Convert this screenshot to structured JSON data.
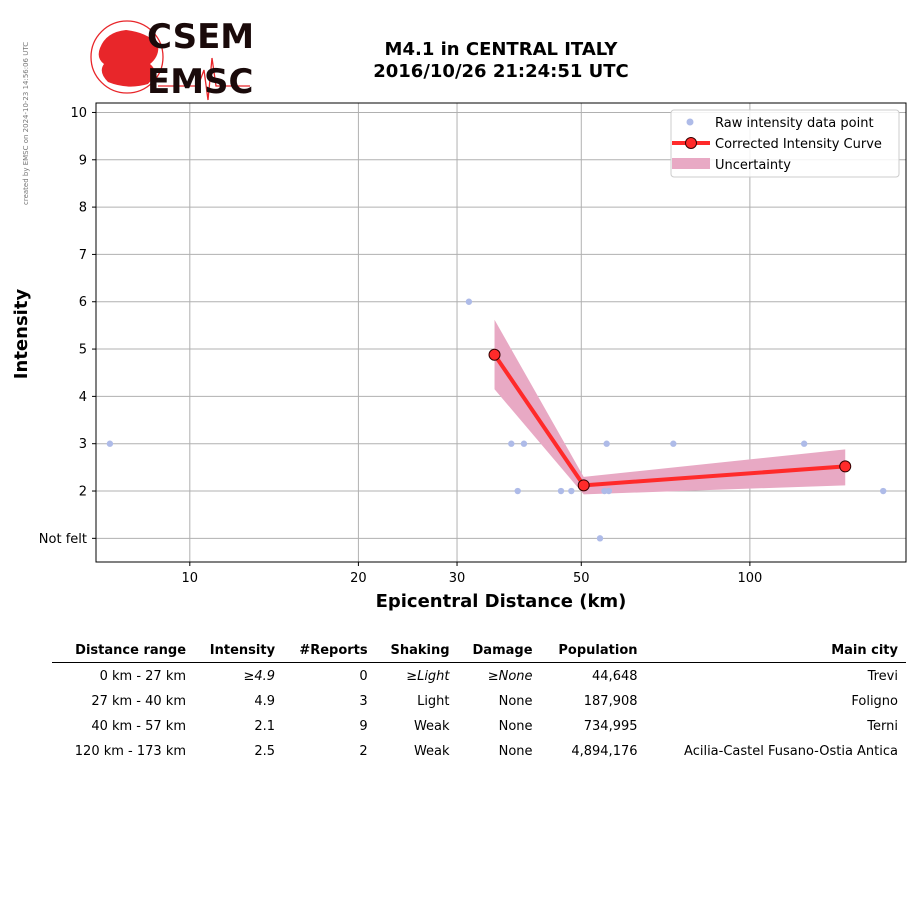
{
  "credit": "created by EMSC on 2024-10-23 14:56:06 UTC",
  "logo": {
    "line1": "CSEM",
    "line2": "EMSC",
    "color": "#e8262a"
  },
  "chart_data": {
    "type": "scatter",
    "title": [
      "M4.1 in CENTRAL ITALY",
      "2016/10/26 21:24:51 UTC"
    ],
    "xlabel": "Epicentral Distance (km)",
    "ylabel": "Intensity",
    "xscale": "log",
    "xlim": [
      6.8,
      190
    ],
    "ylim": [
      0.5,
      10.2
    ],
    "xticks": [
      {
        "value": 10,
        "label": "10"
      },
      {
        "value": 20,
        "label": "20"
      },
      {
        "value": 30,
        "label": "30"
      },
      {
        "value": 50,
        "label": "50"
      },
      {
        "value": 100,
        "label": "100"
      }
    ],
    "yticks": [
      {
        "value": 1,
        "label": "Not felt"
      },
      {
        "value": 2,
        "label": "2"
      },
      {
        "value": 3,
        "label": "3"
      },
      {
        "value": 4,
        "label": "4"
      },
      {
        "value": 5,
        "label": "5"
      },
      {
        "value": 6,
        "label": "6"
      },
      {
        "value": 7,
        "label": "7"
      },
      {
        "value": 8,
        "label": "8"
      },
      {
        "value": 9,
        "label": "9"
      },
      {
        "value": 10,
        "label": "10"
      }
    ],
    "grid": true,
    "legend_position": "top-right",
    "series": [
      {
        "name": "Raw intensity data point",
        "kind": "points",
        "color": "#aebbe8",
        "points": [
          {
            "x": 7.2,
            "y": 3
          },
          {
            "x": 31.5,
            "y": 6
          },
          {
            "x": 37.5,
            "y": 3
          },
          {
            "x": 38.5,
            "y": 2
          },
          {
            "x": 39.5,
            "y": 3
          },
          {
            "x": 46,
            "y": 2
          },
          {
            "x": 48,
            "y": 2
          },
          {
            "x": 54,
            "y": 1
          },
          {
            "x": 55,
            "y": 2
          },
          {
            "x": 55.5,
            "y": 3
          },
          {
            "x": 56,
            "y": 2
          },
          {
            "x": 73,
            "y": 3
          },
          {
            "x": 125,
            "y": 3
          },
          {
            "x": 173,
            "y": 2
          }
        ]
      },
      {
        "name": "Corrected Intensity Curve",
        "kind": "line",
        "color": "#ff2a2a",
        "points": [
          {
            "x": 35,
            "y": 4.88
          },
          {
            "x": 50.5,
            "y": 2.12
          },
          {
            "x": 148,
            "y": 2.52
          }
        ]
      },
      {
        "name": "Uncertainty",
        "kind": "band",
        "color": "#e8a9c4",
        "upper": [
          {
            "x": 35,
            "y": 5.62
          },
          {
            "x": 50.5,
            "y": 2.3
          },
          {
            "x": 148,
            "y": 2.88
          }
        ],
        "lower": [
          {
            "x": 35,
            "y": 4.15
          },
          {
            "x": 50.5,
            "y": 1.93
          },
          {
            "x": 148,
            "y": 2.12
          }
        ]
      }
    ]
  },
  "table": {
    "headers": [
      "Distance range",
      "Intensity",
      "#Reports",
      "Shaking",
      "Damage",
      "Population",
      "Main city"
    ],
    "rows": [
      [
        "0 km -   27 km",
        "≥4.9",
        "0",
        "≥Light",
        "≥None",
        "44,648",
        "Trevi"
      ],
      [
        "27 km -   40 km",
        "4.9",
        "3",
        "Light",
        "None",
        "187,908",
        "Foligno"
      ],
      [
        "40 km -   57 km",
        "2.1",
        "9",
        "Weak",
        "None",
        "734,995",
        "Terni"
      ],
      [
        "120 km -  173 km",
        "2.5",
        "2",
        "Weak",
        "None",
        "4,894,176",
        "Acilia-Castel Fusano-Ostia Antica"
      ]
    ],
    "italic_row": 0
  }
}
